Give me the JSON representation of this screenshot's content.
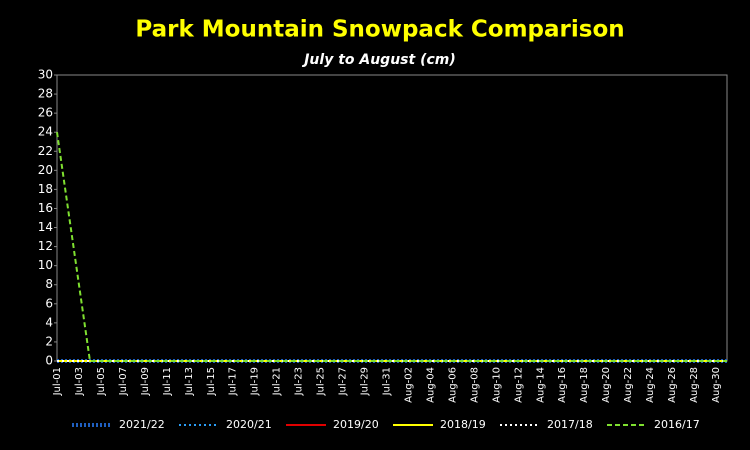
{
  "chart_data": {
    "type": "line",
    "title": "Park Mountain Snowpack Comparison",
    "subtitle": "July to August   (cm)",
    "categories": [
      "Jul-01",
      null,
      "Jul-03",
      null,
      "Jul-05",
      null,
      "Jul-07",
      null,
      "Jul-09",
      null,
      "Jul-11",
      null,
      "Jul-13",
      null,
      "Jul-15",
      null,
      "Jul-17",
      null,
      "Jul-19",
      null,
      "Jul-21",
      null,
      "Jul-23",
      null,
      "Jul-25",
      null,
      "Jul-27",
      null,
      "Jul-29",
      null,
      "Jul-31",
      null,
      "Aug-02",
      null,
      "Aug-04",
      null,
      "Aug-06",
      null,
      "Aug-08",
      null,
      "Aug-10",
      null,
      "Aug-12",
      null,
      "Aug-14",
      null,
      "Aug-16",
      null,
      "Aug-18",
      null,
      "Aug-20",
      null,
      "Aug-22",
      null,
      "Aug-24",
      null,
      "Aug-26",
      null,
      "Aug-28",
      null,
      "Aug-30",
      null
    ],
    "ylim": [
      0,
      30
    ],
    "yticks": [
      0,
      2,
      4,
      6,
      8,
      10,
      12,
      14,
      16,
      18,
      20,
      22,
      24,
      26,
      28,
      30
    ],
    "series": [
      {
        "name": "2021/22",
        "color": "#1f5fbf",
        "dash": "dotted-thick",
        "values": [
          0,
          0,
          0,
          0,
          0,
          0,
          0,
          0,
          0,
          0,
          0,
          0,
          0,
          0,
          0,
          0,
          0,
          0,
          0,
          0,
          0,
          0,
          0,
          0,
          0,
          0,
          0,
          0,
          0,
          0,
          0,
          0,
          0,
          0,
          0,
          0,
          0,
          0,
          0,
          0,
          0,
          0,
          0,
          0,
          0,
          0,
          0,
          0,
          0,
          0,
          0,
          0,
          0,
          0,
          0,
          0,
          0,
          0,
          0,
          0,
          0,
          0
        ]
      },
      {
        "name": "2020/21",
        "color": "#2a9df4",
        "dash": "dotted",
        "values": [
          0,
          0,
          0,
          0,
          0,
          0,
          0,
          0,
          0,
          0,
          0,
          0,
          0,
          0,
          0,
          0,
          0,
          0,
          0,
          0,
          0,
          0,
          0,
          0,
          0,
          0,
          0,
          0,
          0,
          0,
          0,
          0,
          0,
          0,
          0,
          0,
          0,
          0,
          0,
          0,
          0,
          0,
          0,
          0,
          0,
          0,
          0,
          0,
          0,
          0,
          0,
          0,
          0,
          0,
          0,
          0,
          0,
          0,
          0,
          0,
          0,
          0
        ]
      },
      {
        "name": "2019/20",
        "color": "#e00000",
        "dash": "solid",
        "values": [
          0,
          0,
          0,
          0,
          0,
          0,
          0,
          0,
          0,
          0,
          0,
          0,
          0,
          0,
          0,
          0,
          0,
          0,
          0,
          0,
          0,
          0,
          0,
          0,
          0,
          0,
          0,
          0,
          0,
          0,
          0,
          0,
          0,
          0,
          0,
          0,
          0,
          0,
          0,
          0,
          0,
          0,
          0,
          0,
          0,
          0,
          0,
          0,
          0,
          0,
          0,
          0,
          0,
          0,
          0,
          0,
          0,
          0,
          0,
          0,
          0,
          0
        ]
      },
      {
        "name": "2018/19",
        "color": "#ffff00",
        "dash": "solid",
        "values": [
          0,
          0,
          0,
          0,
          0,
          0,
          0,
          0,
          0,
          0,
          0,
          0,
          0,
          0,
          0,
          0,
          0,
          0,
          0,
          0,
          0,
          0,
          0,
          0,
          0,
          0,
          0,
          0,
          0,
          0,
          0,
          0,
          0,
          0,
          0,
          0,
          0,
          0,
          0,
          0,
          0,
          0,
          0,
          0,
          0,
          0,
          0,
          0,
          0,
          0,
          0,
          0,
          0,
          0,
          0,
          0,
          0,
          0,
          0,
          0,
          0,
          0
        ]
      },
      {
        "name": "2017/18",
        "color": "#ffffff",
        "dash": "dotted",
        "values": [
          0,
          0,
          0,
          0,
          0,
          0,
          0,
          0,
          0,
          0,
          0,
          0,
          0,
          0,
          0,
          0,
          0,
          0,
          0,
          0,
          0,
          0,
          0,
          0,
          0,
          0,
          0,
          0,
          0,
          0,
          0,
          0,
          0,
          0,
          0,
          0,
          0,
          0,
          0,
          0,
          0,
          0,
          0,
          0,
          0,
          0,
          0,
          0,
          0,
          0,
          0,
          0,
          0,
          0,
          0,
          0,
          0,
          0,
          0,
          0,
          0,
          0
        ]
      },
      {
        "name": "2016/17",
        "color": "#7fe030",
        "dash": "dashed",
        "values": [
          24,
          16,
          8,
          0,
          0,
          0,
          0,
          0,
          0,
          0,
          0,
          0,
          0,
          0,
          0,
          0,
          0,
          0,
          0,
          0,
          0,
          0,
          0,
          0,
          0,
          0,
          0,
          0,
          0,
          0,
          0,
          0,
          0,
          0,
          0,
          0,
          0,
          0,
          0,
          0,
          0,
          0,
          0,
          0,
          0,
          0,
          0,
          0,
          0,
          0,
          0,
          0,
          0,
          0,
          0,
          0,
          0,
          0,
          0,
          0,
          0,
          0
        ]
      }
    ]
  }
}
